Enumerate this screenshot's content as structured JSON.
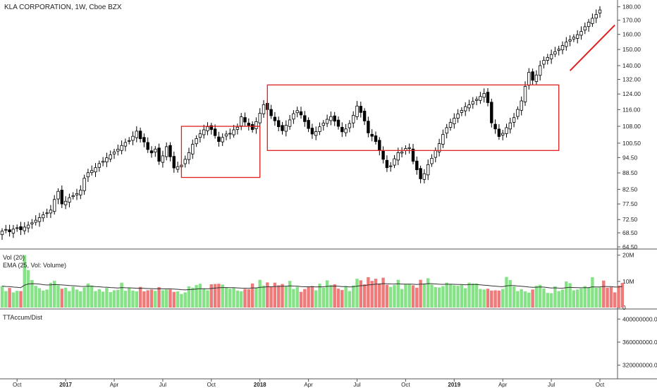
{
  "header": {
    "symbol_line": "KLA CORPORATION, 1W, Cboe BZX"
  },
  "chart_data": [
    {
      "type": "candlestick",
      "title": "KLA CORPORATION, 1W, Cboe BZX",
      "y_scale": "log",
      "y_ticks": [
        "180.00",
        "170.00",
        "160.00",
        "150.00",
        "140.00",
        "132.00",
        "124.00",
        "116.00",
        "108.00",
        "100.50",
        "94.50",
        "88.50",
        "82.50",
        "77.50",
        "72.50",
        "68.50",
        "64.50"
      ],
      "ylim": [
        64.5,
        182
      ],
      "x_ticks": [
        "Oct",
        "2017",
        "Apr",
        "Jul",
        "Oct",
        "2018",
        "Apr",
        "Jul",
        "Oct",
        "2019",
        "Apr",
        "Jul",
        "Oct"
      ],
      "x_tick_weeks": [
        4,
        17,
        30,
        43,
        56,
        69,
        82,
        95,
        108,
        121,
        134,
        147,
        160
      ],
      "weeks": 167,
      "closes": [
        69.0,
        69.5,
        68.8,
        69.6,
        70.0,
        69.4,
        70.2,
        70.8,
        71.5,
        72.3,
        73.1,
        74.0,
        74.6,
        75.5,
        79.0,
        81.8,
        77.5,
        78.4,
        79.6,
        80.3,
        81.0,
        82.2,
        86.5,
        88.6,
        89.4,
        90.5,
        92.1,
        93.0,
        94.4,
        95.6,
        96.8,
        97.9,
        99.5,
        100.8,
        101.6,
        103.5,
        105.8,
        102.4,
        101.0,
        97.8,
        96.4,
        98.0,
        93.0,
        95.2,
        99.0,
        94.8,
        90.4,
        90.9,
        91.5,
        93.8,
        96.5,
        100.0,
        102.5,
        104.6,
        106.4,
        107.8,
        106.5,
        103.8,
        101.2,
        103.0,
        104.5,
        104.8,
        106.4,
        107.6,
        112.5,
        110.0,
        108.4,
        106.5,
        110.2,
        114.2,
        118.5,
        116.0,
        113.0,
        110.6,
        107.8,
        106.0,
        108.5,
        111.0,
        114.0,
        115.5,
        113.4,
        110.2,
        107.0,
        104.5,
        105.6,
        107.8,
        109.5,
        111.3,
        112.6,
        110.4,
        108.0,
        105.5,
        106.8,
        109.3,
        113.2,
        117.8,
        114.6,
        110.5,
        105.0,
        103.5,
        101.2,
        97.5,
        93.8,
        90.5,
        91.2,
        94.0,
        96.5,
        96.8,
        98.2,
        98.6,
        93.0,
        89.7,
        86.3,
        88.2,
        91.7,
        94.2,
        97.3,
        100.3,
        104.3,
        107.4,
        109.8,
        111.8,
        113.9,
        115.6,
        117.5,
        118.4,
        120.1,
        121.2,
        122.7,
        124.3,
        119.5,
        109.6,
        106.8,
        103.4,
        104.8,
        107.4,
        109.6,
        112.1,
        116.1,
        120.4,
        128.1,
        136.0,
        131.5,
        134.5,
        140.0,
        143.2,
        145.0,
        146.8,
        148.6,
        150.2,
        152.6,
        154.8,
        156.3,
        158.1,
        159.8,
        162.0,
        165.3,
        168.6,
        171.4,
        174.2,
        177.6
      ],
      "volume": {
        "label": "Vol (20)",
        "ema_label": "EMA (25, Vol: Volume)",
        "ticks": [
          "20M",
          "10M",
          "0"
        ],
        "values_millions": [
          8.2,
          6.3,
          7.5,
          5.8,
          6.4,
          6.3,
          20.0,
          14.3,
          10.5,
          8.3,
          7.4,
          6.5,
          6.9,
          9.4,
          10.2,
          8.5,
          7.2,
          7.6,
          6.3,
          8.0,
          6.9,
          6.2,
          7.7,
          9.2,
          8.4,
          6.3,
          7.0,
          6.1,
          7.5,
          5.9,
          6.6,
          6.8,
          9.5,
          6.4,
          7.4,
          6.5,
          6.2,
          7.9,
          6.2,
          6.6,
          6.9,
          6.4,
          7.8,
          6.6,
          6.9,
          6.9,
          6.0,
          6.2,
          5.2,
          5.8,
          8.1,
          7.6,
          8.6,
          9.1,
          7.2,
          6.6,
          8.9,
          9.0,
          9.1,
          8.8,
          7.7,
          7.2,
          7.5,
          6.5,
          6.2,
          7.1,
          7.0,
          9.2,
          7.5,
          10.6,
          8.4,
          9.6,
          7.9,
          9.5,
          8.5,
          9.0,
          8.0,
          10.2,
          7.1,
          7.9,
          6.0,
          7.1,
          7.8,
          8.2,
          6.6,
          9.1,
          7.6,
          10.4,
          8.6,
          8.9,
          7.2,
          6.7,
          8.2,
          6.3,
          8.5,
          11.0,
          10.4,
          8.9,
          11.6,
          10.2,
          11.0,
          9.2,
          11.4,
          8.7,
          7.9,
          8.6,
          10.6,
          7.1,
          9.0,
          8.9,
          8.5,
          7.6,
          10.6,
          9.2,
          11.2,
          8.8,
          7.8,
          7.7,
          8.2,
          9.5,
          8.9,
          8.5,
          8.3,
          8.6,
          7.4,
          9.5,
          9.2,
          9.2,
          7.1,
          6.9,
          7.2,
          6.5,
          6.6,
          6.5,
          7.1,
          11.7,
          10.5,
          8.1,
          6.3,
          7.0,
          6.2,
          5.7,
          6.9,
          8.3,
          8.7,
          7.3,
          5.6,
          5.5,
          8.1,
          6.3,
          6.9,
          10.0,
          9.3,
          6.6,
          6.9,
          7.3,
          8.2,
          7.7,
          11.6,
          7.6,
          7.7,
          10.3,
          7.6,
          7.8,
          5.8,
          8.4,
          9.4
        ],
        "ylim": [
          0,
          21
        ]
      },
      "indicator": {
        "label": "TTAccum/Dist",
        "ticks": [
          "400000000.00",
          "360000000.00",
          "320000000.00"
        ],
        "ylim": [
          300000000,
          415000000
        ]
      },
      "annotations": [
        {
          "type": "rectangle",
          "from_week": 48,
          "to_week": 69,
          "y_low": 86.8,
          "y_high": 108.0
        },
        {
          "type": "rectangle",
          "from_week": 71,
          "to_week": 149,
          "y_low": 97.4,
          "y_high": 128.9
        },
        {
          "type": "trendline",
          "from_week": 152,
          "to_week": 164,
          "y_start": 137.0,
          "y_end": 166.5
        }
      ],
      "colors": {
        "up_body": "#ffffff",
        "down_body": "#000000",
        "vol_up": "#86e286",
        "vol_down": "#ee7a7a",
        "ema": "#333333",
        "line": "#3a9a3a",
        "line_avg": "#7fb3e6",
        "box": "#e02020"
      }
    }
  ]
}
